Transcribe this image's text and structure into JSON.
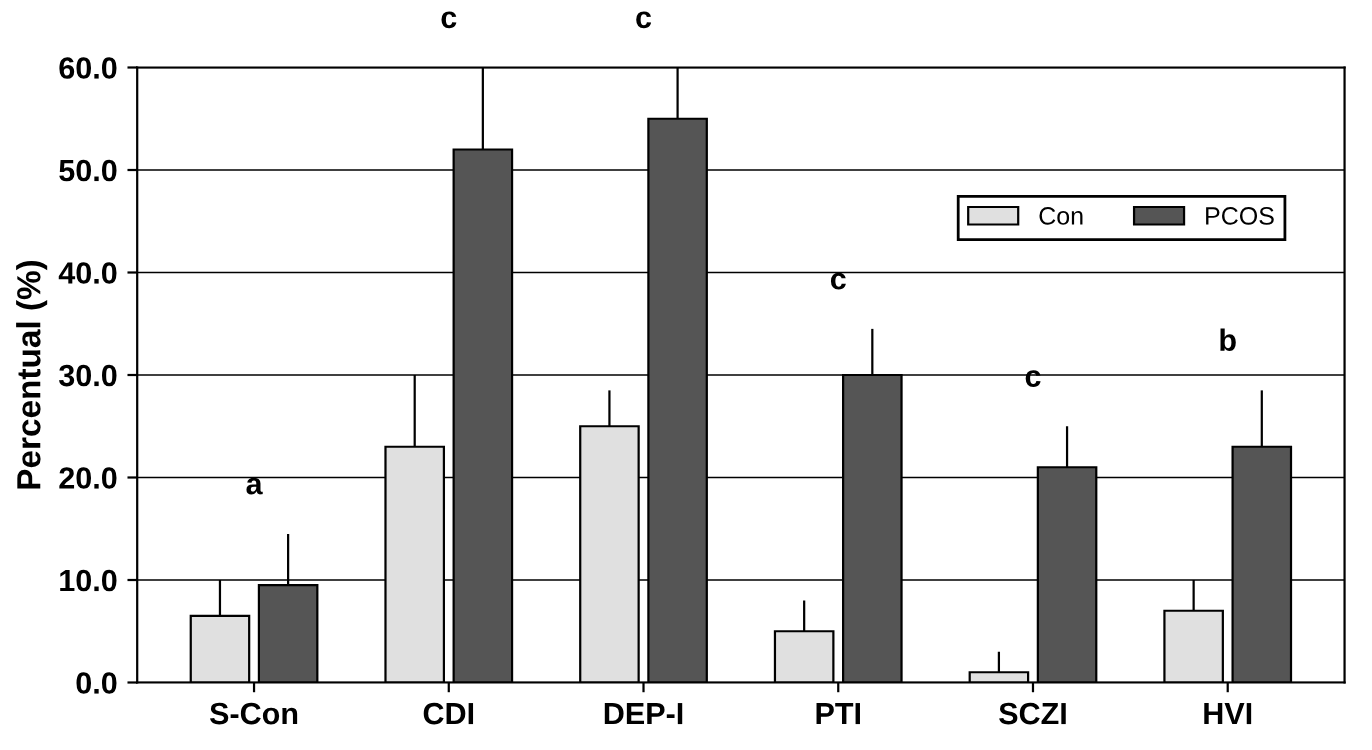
{
  "chart_data": {
    "type": "bar",
    "ylabel": "Percentual (%)",
    "categories": [
      "S-Con",
      "CDI",
      "DEP-I",
      "PTI",
      "SCZI",
      "HVI"
    ],
    "series": [
      {
        "name": "Con",
        "color": "#e0e0e0",
        "values": [
          6.5,
          23,
          25,
          5,
          1,
          7
        ],
        "errors": [
          [
            6.5,
            10
          ],
          [
            23,
            30
          ],
          [
            25,
            28.5
          ],
          [
            5,
            8
          ],
          [
            1,
            3
          ],
          [
            7,
            10
          ]
        ]
      },
      {
        "name": "PCOS",
        "color": "#555555",
        "values": [
          9.5,
          52,
          55,
          30,
          21,
          23
        ],
        "errors": [
          [
            9.5,
            14.5
          ],
          [
            52,
            60
          ],
          [
            55,
            60
          ],
          [
            30,
            34.5
          ],
          [
            21,
            25
          ],
          [
            23,
            28.5
          ]
        ]
      }
    ],
    "annotations": [
      "a",
      "c",
      "c",
      "c",
      "c",
      "b"
    ],
    "ylim": [
      0,
      60
    ],
    "yticks": [
      {
        "value": 0,
        "label": "0.0"
      },
      {
        "value": 10,
        "label": "10.0"
      },
      {
        "value": 20,
        "label": "20.0"
      },
      {
        "value": 30,
        "label": "30.0"
      },
      {
        "value": 40,
        "label": "40.0"
      },
      {
        "value": 50,
        "label": "50.0"
      },
      {
        "value": 60,
        "label": "60.0"
      }
    ],
    "grid": "y",
    "legend": "top right"
  }
}
